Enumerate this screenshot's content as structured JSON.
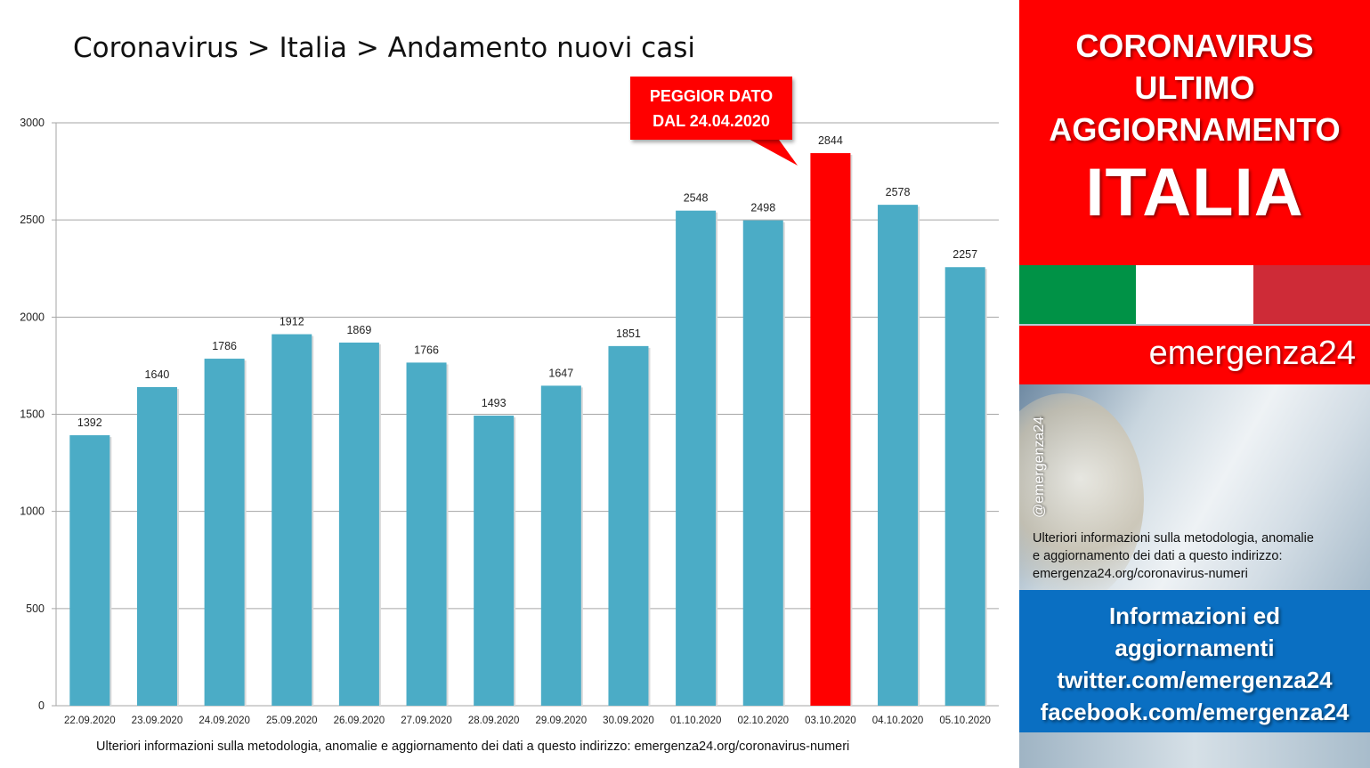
{
  "chart_data": {
    "type": "bar",
    "title": "Coronavirus > Italia > Andamento nuovi casi",
    "categories": [
      "22.09.2020",
      "23.09.2020",
      "24.09.2020",
      "25.09.2020",
      "26.09.2020",
      "27.09.2020",
      "28.09.2020",
      "29.09.2020",
      "30.09.2020",
      "01.10.2020",
      "02.10.2020",
      "03.10.2020",
      "04.10.2020",
      "05.10.2020"
    ],
    "values": [
      1392,
      1640,
      1786,
      1912,
      1869,
      1766,
      1493,
      1647,
      1851,
      2548,
      2498,
      2844,
      2578,
      2257
    ],
    "highlight_index": 11,
    "ylim": [
      0,
      3000
    ],
    "yticks": [
      "0",
      "500",
      "1000",
      "1500",
      "2000",
      "2500",
      "3000"
    ],
    "grid": true,
    "bar_color": "#4bacc6",
    "highlight_color": "#ff0000",
    "annotation": {
      "line1": "PEGGIOR DATO",
      "line2": "DAL 24.04.2020"
    },
    "footnote": "Ulteriori informazioni sulla metodologia, anomalie e aggiornamento dei dati a questo indirizzo: emergenza24.org/coronavirus-numeri"
  },
  "sidebar": {
    "header_lines": [
      "CORONAVIRUS",
      "ULTIMO",
      "AGGIORNAMENTO"
    ],
    "header_big": "ITALIA",
    "flag_colors": [
      "#009246",
      "#ffffff",
      "#ce2b37"
    ],
    "brand": "emergenza24",
    "handle": "@emergenza24",
    "info_lines": [
      "Ulteriori informazioni sulla metodologia, anomalie",
      "e aggiornamento dei dati a questo indirizzo:",
      "emergenza24.org/coronavirus-numeri"
    ],
    "links": [
      "Informazioni ed",
      "aggiornamenti",
      "twitter.com/emergenza24",
      "facebook.com/emergenza24"
    ]
  }
}
